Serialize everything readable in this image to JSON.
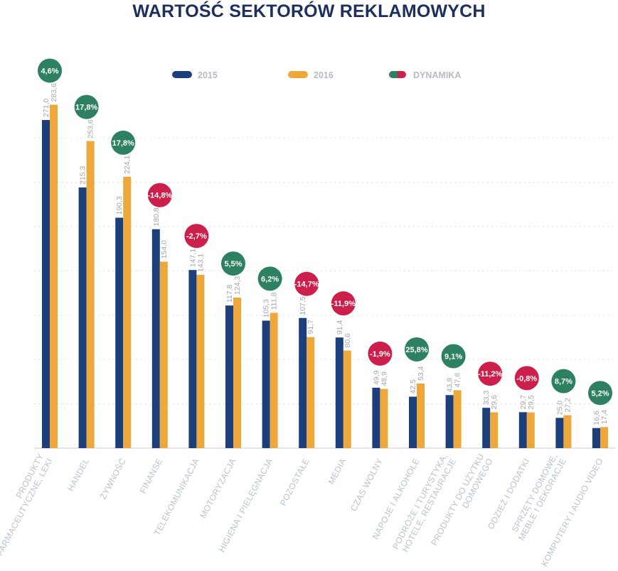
{
  "title": "WARTOŚĆ SEKTORÓW REKLAMOWYCH",
  "legend": [
    {
      "name": "2015",
      "color": "#1c3f7c"
    },
    {
      "name": "2016",
      "color": "#eea73b"
    },
    {
      "name": "DYNAMIKA",
      "colors": [
        "#2d8060",
        "#cd1f4b"
      ]
    }
  ],
  "chart_data": {
    "type": "bar",
    "title": "WARTOŚĆ SEKTORÓW REKLAMOWYCH",
    "categories": [
      "PRODUKTY|FARMACEUTYCZNE, LEKI",
      "HANDEL",
      "ŻYWNOŚĆ",
      "FINANSE",
      "TELEKOMUNIKACJA",
      "MOTORYZACJA",
      "HIGIENA I PIELĘGNACJA",
      "POZOSTAŁE",
      "MEDIA",
      "CZAS WOLNY",
      "NAPOJE I ALKOHOLE",
      "PODRÓŻE I TURYSTYKA,|HOTELE, RESTAURACJE",
      "PRODUKTY DO UŻYTKU|DOMOWEGO",
      "ODZIEŻ I DODATKI",
      "SPRZĘTY DOMOWE,|MEBLE I DEKORACJE",
      "KOMPUTERY I AUDIO VIDEO"
    ],
    "series": [
      {
        "name": "2015",
        "color": "#1c3f7c",
        "values": [
          271.0,
          215.3,
          190.3,
          180.8,
          147.1,
          117.8,
          105.3,
          107.5,
          91.4,
          49.9,
          42.5,
          43.8,
          33.3,
          29.7,
          25.0,
          16.6
        ],
        "labels": [
          "271,0",
          "215,3",
          "190,3",
          "180,8",
          "147,1",
          "117,8",
          "105,3",
          "107,5",
          "91,4",
          "49,9",
          "42,5",
          "43,8",
          "33,3",
          "29,7",
          "25,0",
          "16,6"
        ]
      },
      {
        "name": "2016",
        "color": "#eea73b",
        "values": [
          283.6,
          253.6,
          224.1,
          154.0,
          143.1,
          124.3,
          111.8,
          91.7,
          80.6,
          48.9,
          53.4,
          47.8,
          29.6,
          29.5,
          27.2,
          17.4
        ],
        "labels": [
          "283,6",
          "253,6",
          "224,1",
          "154,0",
          "143,1",
          "124,3",
          "111,8",
          "91,7",
          "80,6",
          "48,9",
          "53,4",
          "47,8",
          "29,6",
          "29,5",
          "27,2",
          "17,4"
        ]
      }
    ],
    "dynamics": {
      "name": "DYNAMIKA",
      "values": [
        4.6,
        17.8,
        17.8,
        -14.8,
        -2.7,
        5.5,
        6.2,
        -14.7,
        -11.9,
        -1.9,
        25.8,
        9.1,
        -11.2,
        -0.8,
        8.7,
        5.2
      ],
      "labels": [
        "4,6%",
        "17,8%",
        "17,8%",
        "-14,8%",
        "-2,7%",
        "5,5%",
        "6,2%",
        "-14,7%",
        "-11,9%",
        "-1,9%",
        "25,8%",
        "9,1%",
        "-11,2%",
        "-0,8%",
        "8,7%",
        "5,2%"
      ],
      "positive_color": "#2d8060",
      "negative_color": "#cd1f4b"
    },
    "ylim": [
      0,
      300
    ],
    "grid": true,
    "xlabel": "",
    "ylabel": "",
    "legend_position": "top-center"
  }
}
